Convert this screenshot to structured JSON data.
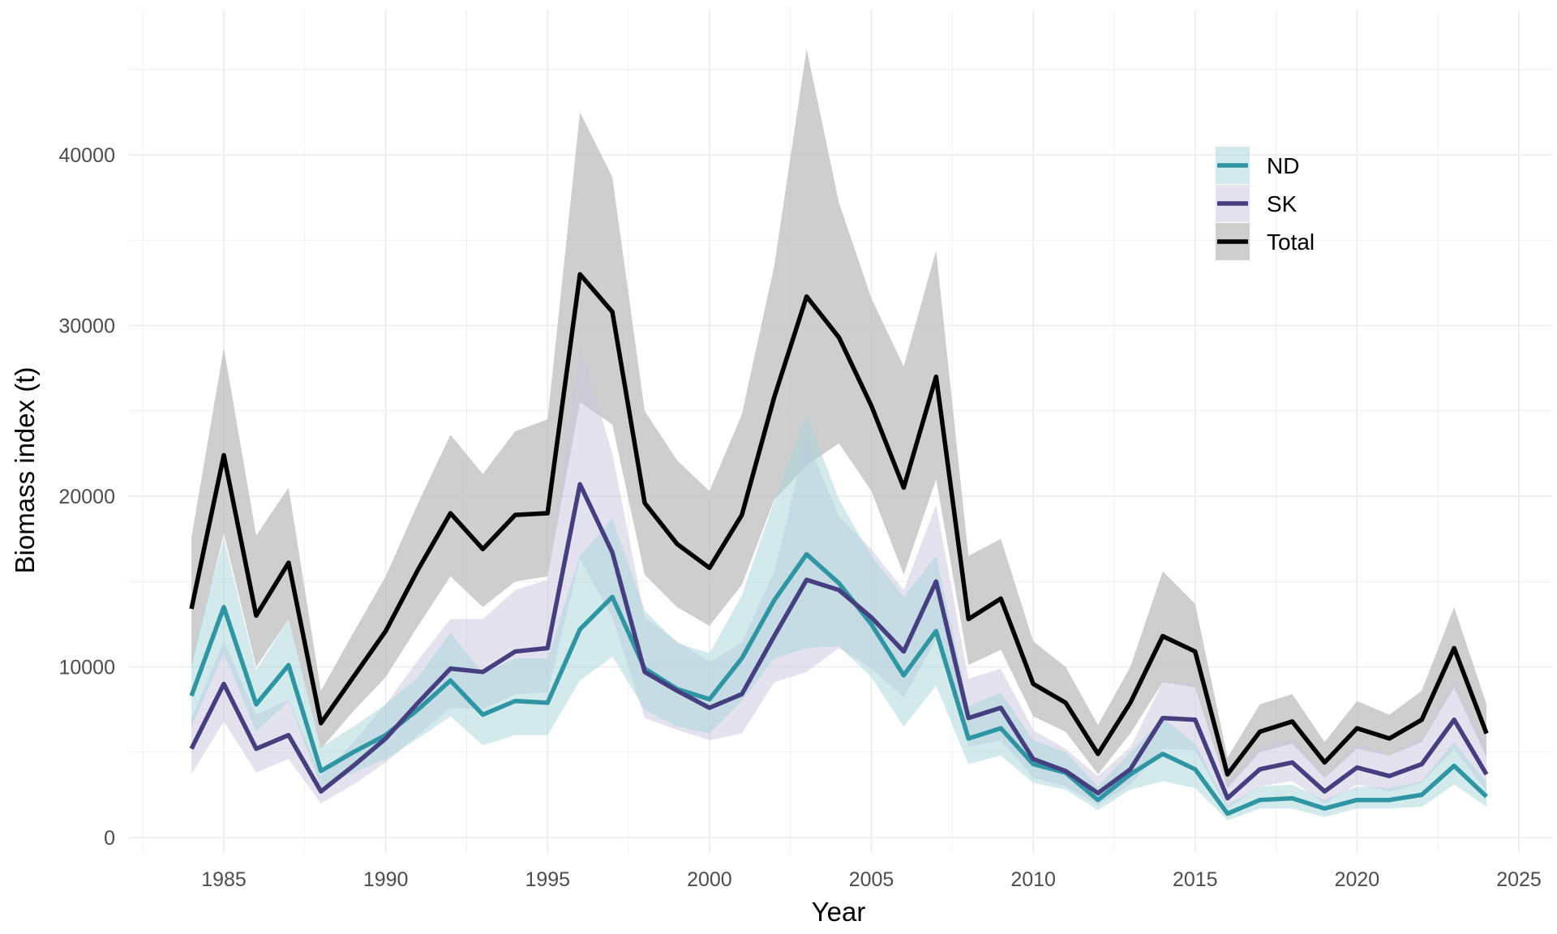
{
  "chart_data": {
    "type": "line",
    "title": "",
    "xlabel": "Year",
    "ylabel": "Biomass index (t)",
    "xlim": [
      1981,
      2026
    ],
    "ylim": [
      -2300,
      48700
    ],
    "x_ticks": [
      "1985",
      "1990",
      "1995",
      "2000",
      "2005",
      "2010",
      "2015",
      "2020",
      "2025"
    ],
    "y_ticks": [
      "0",
      "10000",
      "20000",
      "30000",
      "40000"
    ],
    "grid": true,
    "legend_position": "top-right",
    "x": [
      1984,
      1985,
      1986,
      1987,
      1988,
      1989,
      1990,
      1991,
      1992,
      1993,
      1994,
      1995,
      1996,
      1997,
      1998,
      1999,
      2000,
      2001,
      2002,
      2003,
      2004,
      2005,
      2006,
      2007,
      2008,
      2009,
      2010,
      2011,
      2012,
      2013,
      2014,
      2015,
      2016,
      2017,
      2018,
      2019,
      2020,
      2021,
      2022,
      2023,
      2024
    ],
    "series": [
      {
        "name": "ND",
        "color": "#2e95a3",
        "fill": "#a8d5db",
        "values": [
          8300,
          13500,
          7800,
          10100,
          3900,
          5000,
          6000,
          7500,
          9200,
          7200,
          8000,
          7900,
          12200,
          14100,
          9900,
          8700,
          8100,
          10500,
          13900,
          16600,
          14900,
          12500,
          9500,
          12100,
          5800,
          6400,
          4300,
          3800,
          2200,
          3700,
          4900,
          4000,
          1400,
          2200,
          2300,
          1700,
          2200,
          2200,
          2500,
          4200,
          2400
        ],
        "lower": [
          6500,
          10800,
          6200,
          8000,
          3000,
          3800,
          4600,
          5800,
          7100,
          5400,
          6000,
          6000,
          9200,
          10600,
          7500,
          6500,
          6100,
          8000,
          10500,
          11100,
          11200,
          9400,
          6500,
          8900,
          4300,
          4800,
          3200,
          2800,
          1600,
          2800,
          3300,
          2900,
          1000,
          1700,
          1700,
          1200,
          1700,
          1700,
          1800,
          3100,
          1800
        ],
        "upper": [
          10500,
          17500,
          9800,
          12800,
          5300,
          6500,
          7800,
          9400,
          12000,
          9600,
          10500,
          10500,
          16500,
          18700,
          13300,
          11400,
          10800,
          14200,
          19700,
          24800,
          19800,
          16500,
          14100,
          16500,
          7700,
          8500,
          5700,
          5000,
          3000,
          5000,
          7000,
          5500,
          1900,
          3000,
          3100,
          2200,
          3000,
          2900,
          3300,
          5600,
          3200
        ]
      },
      {
        "name": "SK",
        "color": "#453f80",
        "fill": "#c9c6de",
        "values": [
          5200,
          9000,
          5200,
          6000,
          2700,
          4200,
          5800,
          7900,
          9900,
          9700,
          10900,
          11100,
          20700,
          16700,
          9700,
          8600,
          7600,
          8400,
          11800,
          15100,
          14500,
          12900,
          10900,
          15000,
          7000,
          7600,
          4600,
          3900,
          2600,
          4000,
          7000,
          6900,
          2300,
          4000,
          4400,
          2700,
          4100,
          3600,
          4300,
          6900,
          3700
        ],
        "lower": [
          3700,
          6800,
          3800,
          4600,
          2000,
          3100,
          4400,
          6000,
          7600,
          7500,
          8400,
          8500,
          16300,
          12900,
          7000,
          6300,
          5700,
          6100,
          9100,
          9700,
          11100,
          9900,
          8200,
          11600,
          5300,
          5700,
          3500,
          3000,
          1900,
          3100,
          5200,
          5100,
          1700,
          3000,
          3300,
          2000,
          3100,
          2700,
          3200,
          5200,
          2700
        ],
        "upper": [
          7000,
          11500,
          7200,
          8100,
          3600,
          5600,
          7800,
          10400,
          12800,
          12800,
          14500,
          15100,
          28900,
          22500,
          12900,
          11500,
          10300,
          11400,
          15600,
          23400,
          18800,
          16900,
          14500,
          19500,
          9300,
          9900,
          6300,
          5200,
          3600,
          5300,
          9100,
          9000,
          3100,
          5300,
          5800,
          3600,
          5600,
          4800,
          5800,
          9200,
          5200
        ]
      },
      {
        "name": "Total",
        "color": "#000000",
        "fill": "#bdbdbd",
        "values": [
          13400,
          22400,
          13000,
          16100,
          6700,
          9400,
          12100,
          15700,
          19000,
          16900,
          18900,
          19000,
          33000,
          30800,
          19600,
          17200,
          15800,
          18900,
          25800,
          31700,
          29300,
          25300,
          20500,
          27000,
          12800,
          14000,
          9000,
          7900,
          4900,
          7900,
          11800,
          10900,
          3700,
          6200,
          6800,
          4400,
          6400,
          5800,
          6900,
          11100,
          6100
        ],
        "lower": [
          10000,
          17800,
          10000,
          12800,
          5200,
          7400,
          9400,
          12400,
          15300,
          13500,
          15000,
          15300,
          25500,
          24200,
          15400,
          13500,
          12400,
          14800,
          19800,
          21800,
          23100,
          20300,
          15400,
          21000,
          10100,
          11000,
          7100,
          6200,
          3700,
          6100,
          9100,
          8800,
          2900,
          5000,
          5500,
          3500,
          5200,
          4800,
          5600,
          8800,
          4700
        ],
        "upper": [
          17600,
          28700,
          17700,
          20500,
          8600,
          12000,
          15300,
          19600,
          23600,
          21300,
          23800,
          24500,
          42500,
          38700,
          25000,
          22100,
          20300,
          24800,
          33500,
          46200,
          37200,
          31600,
          27600,
          34400,
          16500,
          17500,
          11500,
          10000,
          6600,
          10000,
          15600,
          13700,
          4700,
          7800,
          8400,
          5600,
          8000,
          7200,
          8600,
          13500,
          7800
        ]
      }
    ]
  }
}
